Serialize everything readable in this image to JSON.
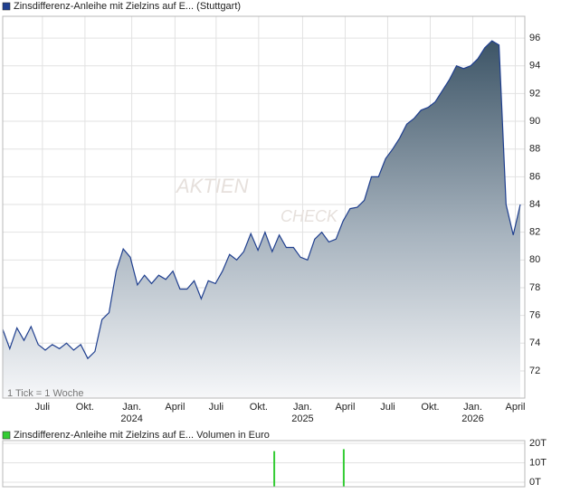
{
  "chart_data": [
    {
      "type": "area",
      "title": "Zinsdifferenz-Anleihe mit Zielzins auf E... (Stuttgart)",
      "note": "1 Tick = 1 Woche",
      "watermark": [
        "AKTIEN",
        "CHECK"
      ],
      "color": "#1f3f8f",
      "values": [
        75.0,
        73.6,
        75.1,
        74.2,
        75.2,
        73.9,
        73.5,
        73.9,
        73.6,
        74.0,
        73.5,
        73.9,
        72.9,
        73.4,
        75.7,
        76.2,
        79.2,
        80.8,
        80.2,
        78.2,
        78.9,
        78.3,
        78.9,
        78.6,
        79.2,
        77.9,
        77.9,
        78.5,
        77.2,
        78.5,
        78.3,
        79.2,
        80.4,
        80.0,
        80.6,
        81.9,
        80.7,
        82.0,
        80.6,
        81.8,
        80.9,
        80.9,
        80.2,
        80.0,
        81.5,
        82.0,
        81.3,
        81.5,
        82.8,
        83.7,
        83.8,
        84.3,
        86.0,
        86.0,
        87.3,
        88.0,
        88.8,
        89.8,
        90.2,
        90.8,
        91.0,
        91.4,
        92.2,
        93.0,
        94.0,
        93.8,
        94.0,
        94.5,
        95.3,
        95.8,
        95.5,
        84.0,
        81.8,
        84.0
      ],
      "xlim": [
        0,
        73
      ],
      "xticks": [
        {
          "value": 5.6,
          "label": "Juli"
        },
        {
          "value": 11.6,
          "label": "Okt."
        },
        {
          "value": 18.2,
          "label": "Jan."
        },
        {
          "value": 24.3,
          "label": "April"
        },
        {
          "value": 30.1,
          "label": "Juli"
        },
        {
          "value": 36.1,
          "label": "Okt."
        },
        {
          "value": 42.3,
          "label": "Jan."
        },
        {
          "value": 48.3,
          "label": "April"
        },
        {
          "value": 54.3,
          "label": "Juli"
        },
        {
          "value": 60.3,
          "label": "Okt."
        },
        {
          "value": 66.3,
          "label": "Jan."
        },
        {
          "value": 72.3,
          "label": "April"
        }
      ],
      "year_ticks": [
        {
          "value": 18.2,
          "label": "2024"
        },
        {
          "value": 42.3,
          "label": "2025"
        },
        {
          "value": 66.3,
          "label": "2026"
        }
      ],
      "ylim": [
        70.04,
        97.57
      ],
      "yticks": [
        72,
        74,
        76,
        78,
        80,
        82,
        84,
        86,
        88,
        90,
        92,
        94,
        96
      ],
      "grid": true
    },
    {
      "type": "bar",
      "title": "Zinsdifferenz-Anleihe mit Zielzins auf E... Volumen in Euro",
      "color": "#33cc33",
      "x": [
        38.3,
        48.1
      ],
      "values": [
        16000,
        17000
      ],
      "xlim": [
        0,
        73
      ],
      "ylim": [
        -2330,
        21400
      ],
      "yticks": [
        {
          "value": 0,
          "label": "0T"
        },
        {
          "value": 10000,
          "label": "10T"
        },
        {
          "value": 20000,
          "label": "20T"
        }
      ],
      "grid": true
    }
  ]
}
